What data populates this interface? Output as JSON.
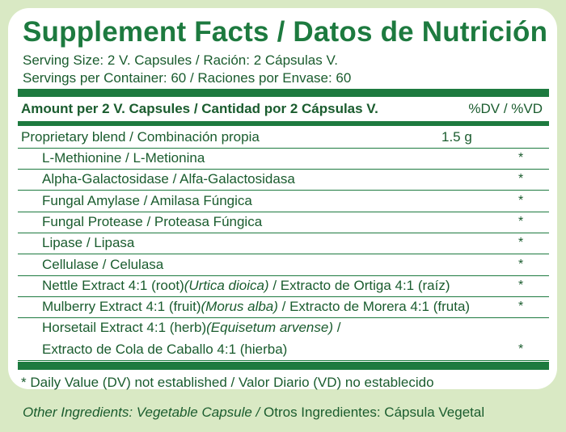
{
  "title": "Supplement Facts / Datos de Nutrición",
  "serving_size": "Serving Size: 2 V. Capsules / Ración: 2 Cápsulas V.",
  "servings_per_container": "Servings per Container: 60 / Raciones por Envase: 60",
  "amount_header": "Amount per 2 V. Capsules / Cantidad por 2 Cápsulas V.",
  "dv_header": "%DV / %VD",
  "blend": {
    "label": "Proprietary blend / Combinación propia",
    "amount": "1.5 g"
  },
  "ingredients": [
    {
      "parts": [
        "L-Methionine / L-Metionina"
      ],
      "star": "*"
    },
    {
      "parts": [
        "Alpha-Galactosidase / Alfa-Galactosidasa"
      ],
      "star": "*"
    },
    {
      "parts": [
        "Fungal Amylase / Amilasa Fúngica"
      ],
      "star": "*"
    },
    {
      "parts": [
        "Fungal Protease / Proteasa Fúngica"
      ],
      "star": "*"
    },
    {
      "parts": [
        "Lipase / Lipasa"
      ],
      "star": "*"
    },
    {
      "parts": [
        "Cellulase / Celulasa"
      ],
      "star": "*"
    },
    {
      "parts": [
        "Nettle Extract 4:1 (root)",
        "(Urtica dioica)",
        " / Extracto de Ortiga 4:1 (raíz)"
      ],
      "star": "*"
    },
    {
      "parts": [
        "Mulberry Extract 4:1 (fruit)",
        "(Morus alba)",
        " / Extracto de Morera 4:1 (fruta)"
      ],
      "star": "*"
    },
    {
      "parts": [
        "Horsetail Extract 4:1 (herb)",
        "(Equisetum arvense)",
        " /"
      ],
      "star": ""
    },
    {
      "parts": [
        "Extracto de Cola de Caballo 4:1 (hierba)"
      ],
      "star": "*"
    }
  ],
  "footnote": "* Daily Value (DV) not established / Valor Diario (VD) no establecido",
  "other_ingredients_en": "Other Ingredients: Vegetable Capsule /",
  "other_ingredients_es": " Otros Ingredientes: Cápsula Vegetal",
  "colors": {
    "green": "#1d7a3f",
    "background": "#d9e9c4"
  }
}
